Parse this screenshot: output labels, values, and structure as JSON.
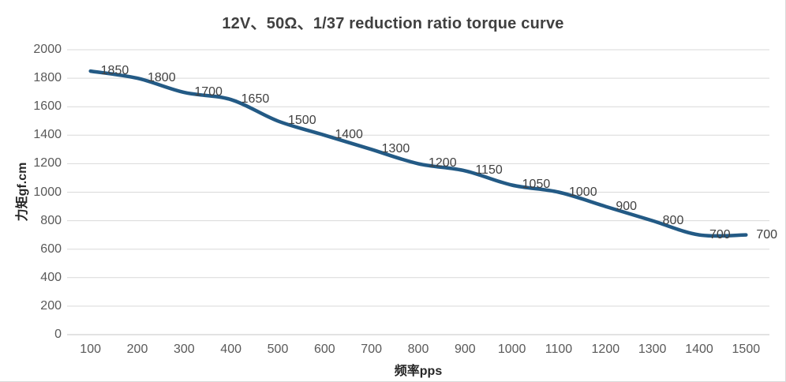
{
  "chart_data": {
    "type": "line",
    "title": "12V、50Ω、1/37 reduction ratio torque curve",
    "xlabel": "频率pps",
    "ylabel": "力矩gf.cm",
    "x": [
      100,
      200,
      300,
      400,
      500,
      600,
      700,
      800,
      900,
      1000,
      1100,
      1200,
      1300,
      1400,
      1500
    ],
    "values": [
      1850,
      1800,
      1700,
      1650,
      1500,
      1400,
      1300,
      1200,
      1150,
      1050,
      1000,
      900,
      800,
      700,
      700
    ],
    "data_labels": [
      "1850",
      "1800",
      "1700",
      "1650",
      "1500",
      "1400",
      "1300",
      "1200",
      "1150",
      "1050",
      "1000",
      "900",
      "800",
      "700",
      "700"
    ],
    "ylim": [
      0,
      2000
    ],
    "ytick_step": 200,
    "grid": "horizontal",
    "legend": "none",
    "smooth_line": true,
    "colors": {
      "line": "#235A85",
      "grid": "#D9D9D9",
      "axis_line": "#C6C6C6",
      "tick_text": "#595959",
      "data_label_text": "#404040",
      "title_text": "#404040",
      "axis_title_text": "#262626",
      "background": "#FFFFFF",
      "border": "#D9D9D9"
    }
  }
}
